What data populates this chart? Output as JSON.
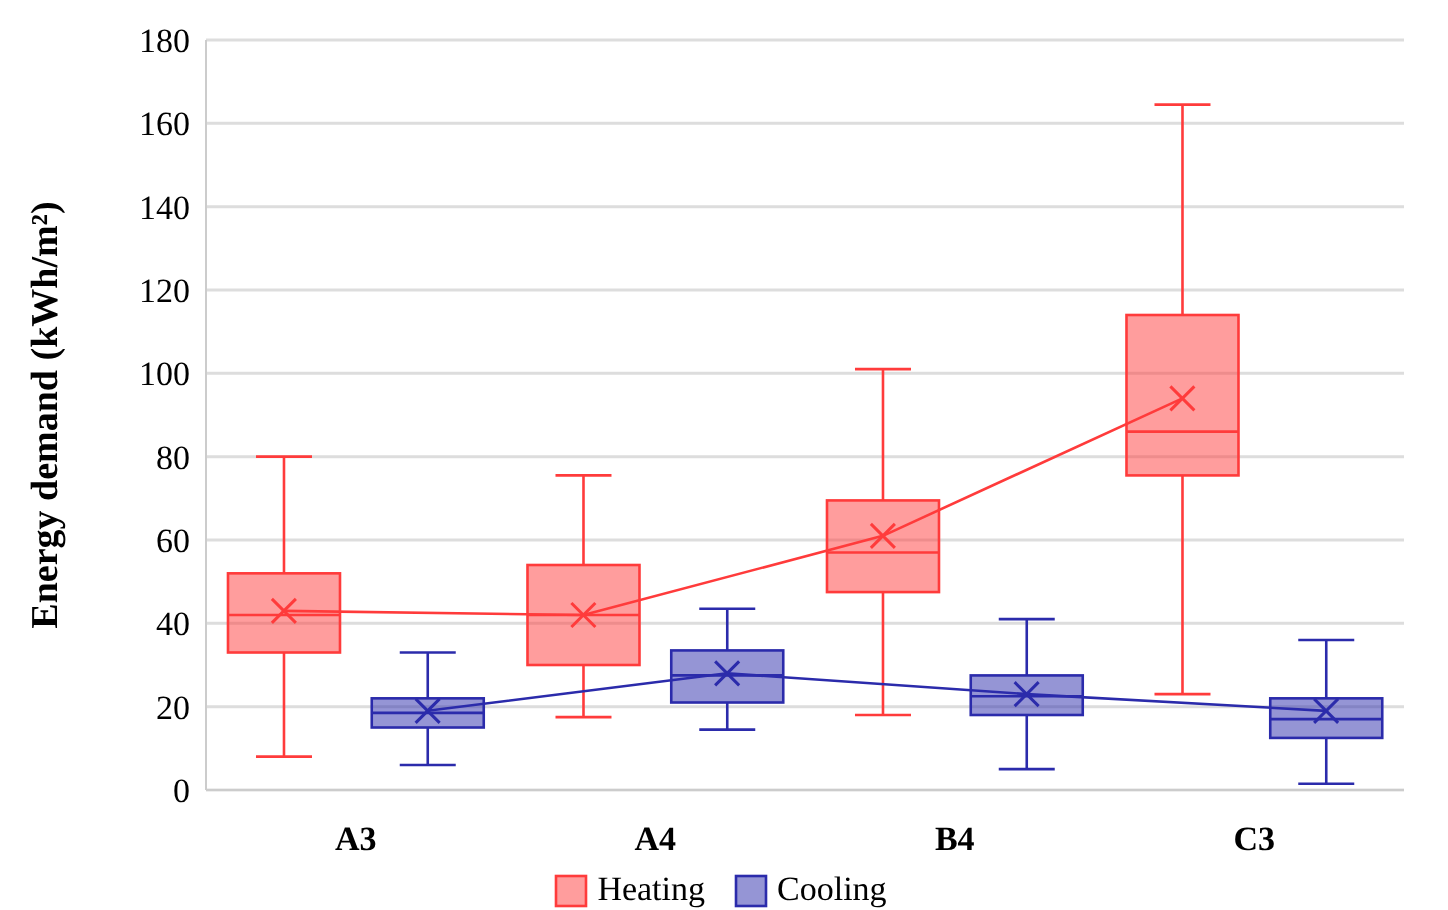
{
  "chart_data": {
    "type": "box",
    "ylabel": "Energy demand (kWh/m²)",
    "categories": [
      "A3",
      "A4",
      "B4",
      "C3"
    ],
    "ylim": [
      0,
      180
    ],
    "yticks": [
      0,
      20,
      40,
      60,
      80,
      100,
      120,
      140,
      160,
      180
    ],
    "grid": "y",
    "legend": "bottom",
    "marker": "cross",
    "series": [
      {
        "name": "Heating",
        "color": "#ff3b3b",
        "boxes": [
          {
            "low": 8,
            "q1": 33,
            "median": 42,
            "q3": 52,
            "high": 80
          },
          {
            "low": 17.5,
            "q1": 30,
            "median": 42,
            "q3": 54,
            "high": 75.5
          },
          {
            "low": 18,
            "q1": 47.5,
            "median": 57,
            "q3": 69.5,
            "high": 101
          },
          {
            "low": 23,
            "q1": 75.5,
            "median": 86,
            "q3": 114,
            "high": 164.5
          }
        ]
      },
      {
        "name": "Cooling",
        "color": "#2b2bab",
        "boxes": [
          {
            "low": 6,
            "q1": 15,
            "median": 18.5,
            "q3": 22,
            "high": 33
          },
          {
            "low": 14.5,
            "q1": 21,
            "median": 27.5,
            "q3": 33.5,
            "high": 43.5
          },
          {
            "low": 5,
            "q1": 18,
            "median": 22.5,
            "q3": 27.5,
            "high": 41
          },
          {
            "low": 1.5,
            "q1": 12.5,
            "median": 17,
            "q3": 22,
            "high": 36
          }
        ]
      },
      {
        "type": "line",
        "color": "#ff3b3b",
        "values": [
          43,
          42,
          61,
          94
        ]
      },
      {
        "type": "line",
        "color": "#2b2bab",
        "values": [
          19,
          28,
          23,
          19
        ]
      }
    ]
  }
}
